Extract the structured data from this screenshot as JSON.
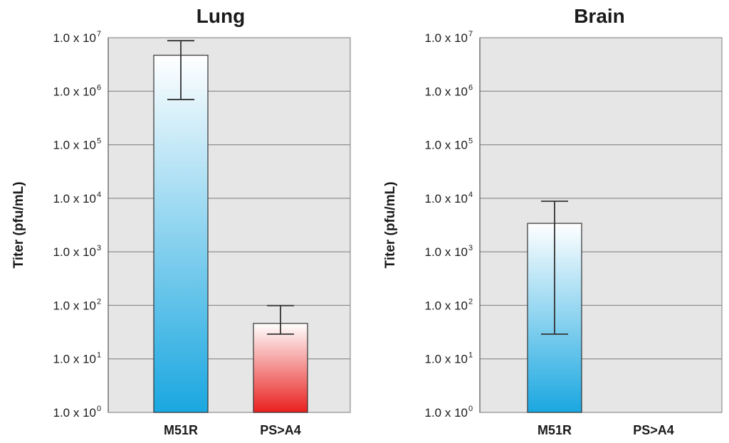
{
  "chart_data": [
    {
      "type": "bar",
      "title": "Lung",
      "ylabel": "Titer (pfu/mL)",
      "xlabel": "",
      "yscale": "log",
      "ylim": [
        1,
        10000000
      ],
      "tick_prefix": "1.0 x 10",
      "tick_exponents": [
        "0",
        "1",
        "2",
        "3",
        "4",
        "5",
        "6",
        "7"
      ],
      "categories": [
        "M51R",
        "PS>A4"
      ],
      "bars": [
        {
          "category": "M51R",
          "value": 4700000,
          "err_low": 700000,
          "err_high": 8800000,
          "color_top": "#ffffff",
          "color_bottom": "#1aa7e0"
        },
        {
          "category": "PS>A4",
          "value": 46,
          "err_low": 29,
          "err_high": 99,
          "color_top": "#ffffff",
          "color_bottom": "#e8201e"
        }
      ],
      "grid": true
    },
    {
      "type": "bar",
      "title": "Brain",
      "ylabel": "Titer (pfu/mL)",
      "xlabel": "",
      "yscale": "log",
      "ylim": [
        1,
        10000000
      ],
      "tick_prefix": "1.0 x 10",
      "tick_exponents": [
        "0",
        "1",
        "2",
        "3",
        "4",
        "5",
        "6",
        "7"
      ],
      "categories": [
        "M51R",
        "PS>A4"
      ],
      "bars": [
        {
          "category": "M51R",
          "value": 3400,
          "err_low": 29,
          "err_high": 8800,
          "color_top": "#ffffff",
          "color_bottom": "#1aa7e0"
        },
        {
          "category": "PS>A4",
          "value": null,
          "err_low": null,
          "err_high": null,
          "color_top": "#ffffff",
          "color_bottom": "#e8201e"
        }
      ],
      "grid": true
    }
  ],
  "colors": {
    "plot_background": "#e6e6e6",
    "grid": "#7a7a7a",
    "bar_border": "#333333",
    "error_bar": "#333333"
  }
}
